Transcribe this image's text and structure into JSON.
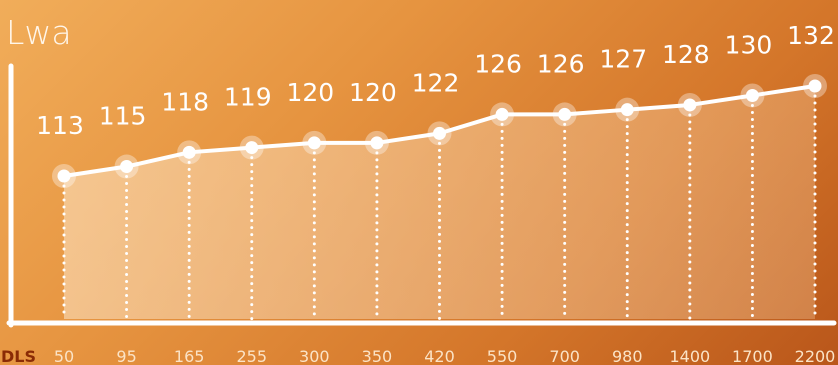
{
  "chart_data": {
    "type": "line",
    "ylabel": "Lwa",
    "x_axis_label": "DLS",
    "categories": [
      "50",
      "95",
      "165",
      "255",
      "300",
      "350",
      "420",
      "550",
      "700",
      "980",
      "1400",
      "1700",
      "2200"
    ],
    "values": [
      113,
      115,
      118,
      119,
      120,
      120,
      122,
      126,
      126,
      127,
      128,
      130,
      132
    ],
    "grid": false,
    "colors": {
      "line": "#ffffff",
      "labels": "#ffffff",
      "tick_labels": "#fbe3c6",
      "axis_title_dls": "#8a2b05",
      "area_fill": "#fce0c0"
    }
  }
}
